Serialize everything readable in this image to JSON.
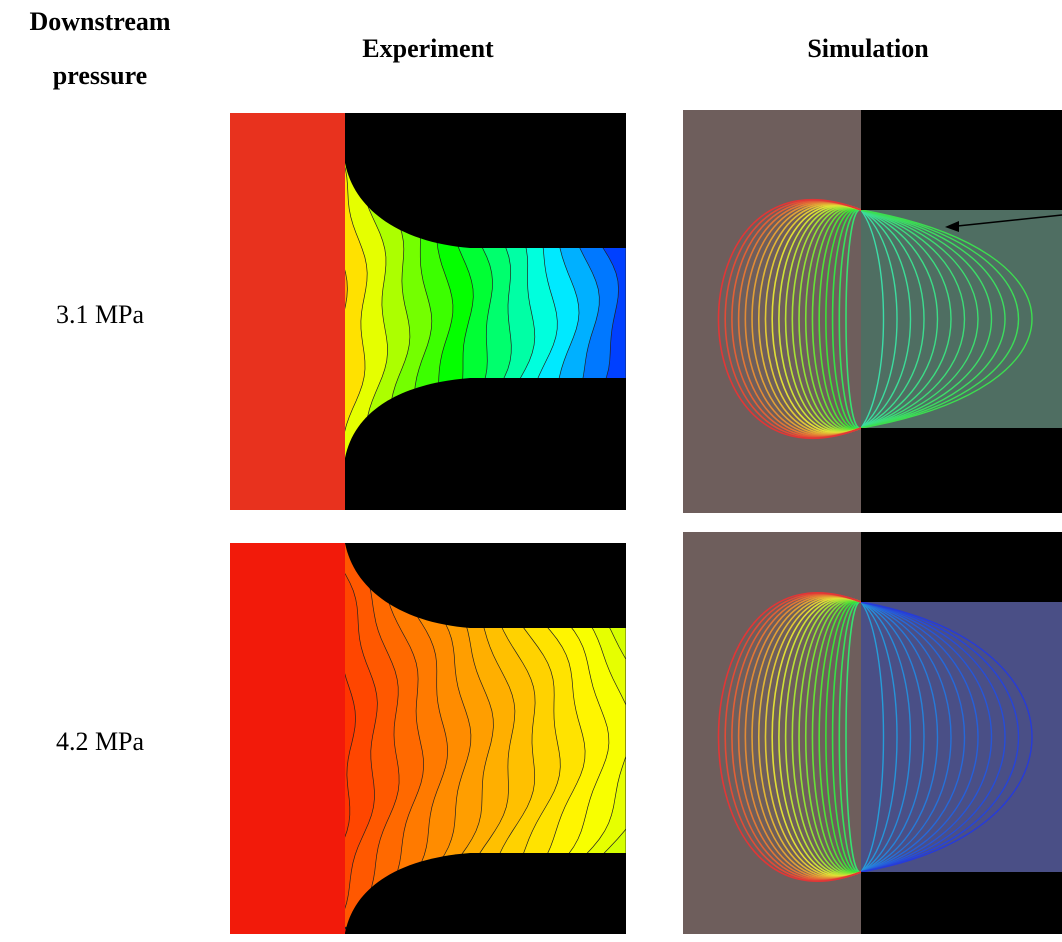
{
  "header": {
    "pressure_label": "Downstream pressure",
    "experiment": "Experiment",
    "simulation": "Simulation"
  },
  "rows": [
    {
      "pressure": "3.1 MPa"
    },
    {
      "pressure": "4.2 MPa"
    }
  ]
}
